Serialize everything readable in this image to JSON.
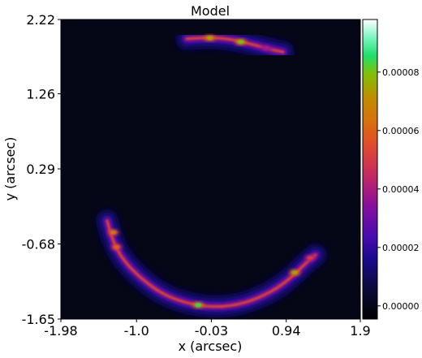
{
  "chart_data": {
    "type": "heatmap",
    "title": "Model",
    "xlabel": "x (arcsec)",
    "ylabel": "y (arcsec)",
    "xlim": [
      -1.98,
      1.9
    ],
    "ylim": [
      -1.65,
      2.22
    ],
    "x_ticks": [
      {
        "value": -1.98,
        "label": "-1.98"
      },
      {
        "value": -1.0,
        "label": "-1.0"
      },
      {
        "value": -0.03,
        "label": "-0.03"
      },
      {
        "value": 0.94,
        "label": "0.94"
      },
      {
        "value": 1.9,
        "label": "1.9"
      }
    ],
    "y_ticks": [
      {
        "value": 2.22,
        "label": "2.22"
      },
      {
        "value": 1.26,
        "label": "1.26"
      },
      {
        "value": 0.29,
        "label": "0.29"
      },
      {
        "value": -0.68,
        "label": "-0.68"
      },
      {
        "value": -1.65,
        "label": "-1.65"
      }
    ],
    "colorbar": {
      "colormap": "gnuplot2",
      "range": [
        -4.5e-06,
        9.8e-05
      ],
      "ticks": [
        {
          "value": 0.0,
          "label": "0.00000"
        },
        {
          "value": 2e-05,
          "label": "0.00002"
        },
        {
          "value": 4e-05,
          "label": "0.00004"
        },
        {
          "value": 6e-05,
          "label": "0.00006"
        },
        {
          "value": 8e-05,
          "label": "0.00008"
        }
      ]
    },
    "background_color": "#060716",
    "arcs": [
      {
        "name": "upper-arc",
        "path": [
          [
            -0.35,
            1.97
          ],
          [
            -0.1,
            1.99
          ],
          [
            0.2,
            1.97
          ],
          [
            0.5,
            1.9
          ],
          [
            0.75,
            1.83
          ],
          [
            0.9,
            1.8
          ]
        ],
        "halo_width": 0.22,
        "knots": [
          {
            "x": -0.05,
            "y": 1.98,
            "intensity": 7.5e-05
          },
          {
            "x": 0.35,
            "y": 1.93,
            "intensity": 8e-05
          },
          {
            "x": 0.68,
            "y": 1.85,
            "intensity": 4e-05
          }
        ]
      },
      {
        "name": "lower-arc",
        "path": [
          [
            -1.38,
            -0.38
          ],
          [
            -1.32,
            -0.62
          ],
          [
            -1.18,
            -0.88
          ],
          [
            -0.95,
            -1.12
          ],
          [
            -0.65,
            -1.34
          ],
          [
            -0.3,
            -1.46
          ],
          [
            0.05,
            -1.5
          ],
          [
            0.4,
            -1.45
          ],
          [
            0.75,
            -1.3
          ],
          [
            1.0,
            -1.12
          ],
          [
            1.2,
            -0.92
          ],
          [
            1.32,
            -0.82
          ]
        ],
        "halo_width": 0.22,
        "knots": [
          {
            "x": -1.3,
            "y": -0.53,
            "intensity": 6.5e-05
          },
          {
            "x": -1.26,
            "y": -0.72,
            "intensity": 6e-05
          },
          {
            "x": -0.2,
            "y": -1.47,
            "intensity": 8.5e-05
          },
          {
            "x": 1.05,
            "y": -1.05,
            "intensity": 7.5e-05
          },
          {
            "x": 1.25,
            "y": -0.86,
            "intensity": 5e-05
          }
        ]
      }
    ]
  }
}
